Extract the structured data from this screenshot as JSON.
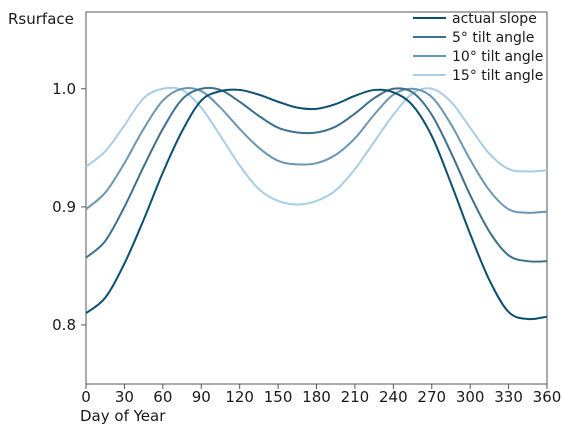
{
  "chart_data": {
    "type": "line",
    "title": "",
    "xlabel": "Day of Year",
    "ylabel": "Rsurface",
    "xlim": [
      0,
      360
    ],
    "ylim": [
      0.75,
      1.065
    ],
    "xticks": [
      0,
      30,
      60,
      90,
      120,
      150,
      180,
      210,
      240,
      270,
      300,
      330,
      360
    ],
    "yticks": [
      0.8,
      0.9,
      1.0
    ],
    "ytick_labels": [
      "0.8",
      "0.9",
      "1.0"
    ],
    "grid": false,
    "legend_position": "top-right",
    "x": [
      0,
      15,
      30,
      45,
      60,
      75,
      90,
      105,
      120,
      135,
      150,
      165,
      180,
      195,
      210,
      225,
      240,
      255,
      270,
      285,
      300,
      315,
      330,
      345,
      360
    ],
    "series": [
      {
        "name": "actual slope",
        "color": "#0b4f71",
        "values": [
          0.81,
          0.823,
          0.852,
          0.889,
          0.929,
          0.964,
          0.99,
          0.998,
          0.999,
          0.995,
          0.989,
          0.984,
          0.983,
          0.987,
          0.994,
          0.999,
          0.997,
          0.986,
          0.96,
          0.92,
          0.877,
          0.838,
          0.811,
          0.805,
          0.807
        ]
      },
      {
        "name": "5° tilt angle",
        "color": "#3d6f8e",
        "values": [
          0.857,
          0.871,
          0.9,
          0.934,
          0.966,
          0.991,
          1.0,
          0.999,
          0.989,
          0.977,
          0.967,
          0.963,
          0.963,
          0.968,
          0.979,
          0.992,
          1.0,
          0.997,
          0.978,
          0.946,
          0.91,
          0.879,
          0.859,
          0.854,
          0.854
        ]
      },
      {
        "name": "10° tilt angle",
        "color": "#6c95b2",
        "values": [
          0.898,
          0.912,
          0.937,
          0.966,
          0.99,
          1.0,
          0.998,
          0.984,
          0.966,
          0.95,
          0.939,
          0.936,
          0.937,
          0.944,
          0.958,
          0.978,
          0.995,
          1.0,
          0.993,
          0.97,
          0.94,
          0.914,
          0.898,
          0.895,
          0.896
        ]
      },
      {
        "name": "15° tilt angle",
        "color": "#a8cde6",
        "values": [
          0.934,
          0.947,
          0.969,
          0.992,
          1.0,
          0.999,
          0.984,
          0.96,
          0.935,
          0.915,
          0.905,
          0.902,
          0.905,
          0.914,
          0.932,
          0.955,
          0.978,
          0.996,
          1.0,
          0.989,
          0.967,
          0.945,
          0.932,
          0.93,
          0.931
        ]
      }
    ]
  }
}
